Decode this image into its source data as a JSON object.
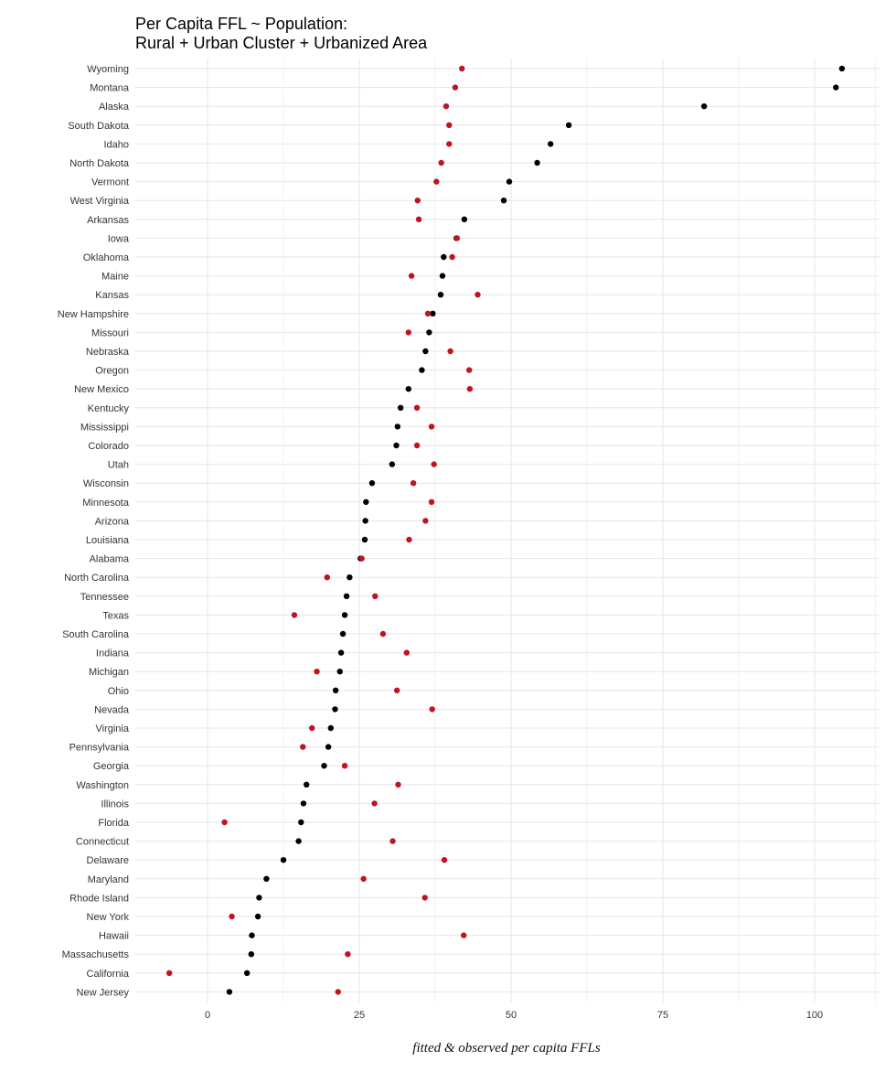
{
  "chart_data": {
    "type": "scatter",
    "title_line1": "Per Capita FFL ~ Population:",
    "title_line2": "Rural + Urban Cluster + Urbanized Area",
    "xlabel": "fitted & observed per capita FFLs",
    "ylabel": "",
    "xlim": [
      -12,
      110
    ],
    "x_ticks": [
      0,
      25,
      50,
      75,
      100
    ],
    "x_minor_ticks": [
      -12.5,
      12.5,
      37.5,
      62.5,
      87.5,
      110
    ],
    "grid": true,
    "colors": {
      "fitted": "#000000",
      "observed": "#c0141e"
    },
    "categories": [
      "Wyoming",
      "Montana",
      "Alaska",
      "South Dakota",
      "Idaho",
      "North Dakota",
      "Vermont",
      "West Virginia",
      "Arkansas",
      "Iowa",
      "Oklahoma",
      "Maine",
      "Kansas",
      "New Hampshire",
      "Missouri",
      "Nebraska",
      "Oregon",
      "New Mexico",
      "Kentucky",
      "Mississippi",
      "Colorado",
      "Utah",
      "Wisconsin",
      "Minnesota",
      "Arizona",
      "Louisiana",
      "Alabama",
      "North Carolina",
      "Tennessee",
      "Texas",
      "South Carolina",
      "Indiana",
      "Michigan",
      "Ohio",
      "Nevada",
      "Virginia",
      "Pennsylvania",
      "Georgia",
      "Washington",
      "Illinois",
      "Florida",
      "Connecticut",
      "Delaware",
      "Maryland",
      "Rhode Island",
      "New York",
      "Hawaii",
      "Massachusetts",
      "California",
      "New Jersey"
    ],
    "series": [
      {
        "key": "fitted",
        "values": [
          104.5,
          103.5,
          81.8,
          59.5,
          56.5,
          54.3,
          49.7,
          48.8,
          42.3,
          41.0,
          38.9,
          38.7,
          38.4,
          37.1,
          36.5,
          35.9,
          35.3,
          33.1,
          31.8,
          31.3,
          31.1,
          30.4,
          27.1,
          26.1,
          26.0,
          25.9,
          25.2,
          23.4,
          22.9,
          22.6,
          22.3,
          22.0,
          21.8,
          21.1,
          21.0,
          20.3,
          19.9,
          19.2,
          16.3,
          15.8,
          15.4,
          15.0,
          12.5,
          9.7,
          8.5,
          8.3,
          7.3,
          7.2,
          6.5,
          3.6
        ]
      },
      {
        "key": "observed",
        "values": [
          41.9,
          40.8,
          39.3,
          39.8,
          39.8,
          38.5,
          37.7,
          34.6,
          34.8,
          41.1,
          40.3,
          33.6,
          44.5,
          36.3,
          33.1,
          40.0,
          43.1,
          43.2,
          34.5,
          36.9,
          34.5,
          37.3,
          33.9,
          36.9,
          35.9,
          33.2,
          25.4,
          19.7,
          27.6,
          14.3,
          28.9,
          32.8,
          18.0,
          31.2,
          37.0,
          17.2,
          15.7,
          22.6,
          31.4,
          27.5,
          2.8,
          30.5,
          39.0,
          25.7,
          35.8,
          4.0,
          42.2,
          23.1,
          -6.3,
          21.5
        ]
      }
    ]
  }
}
